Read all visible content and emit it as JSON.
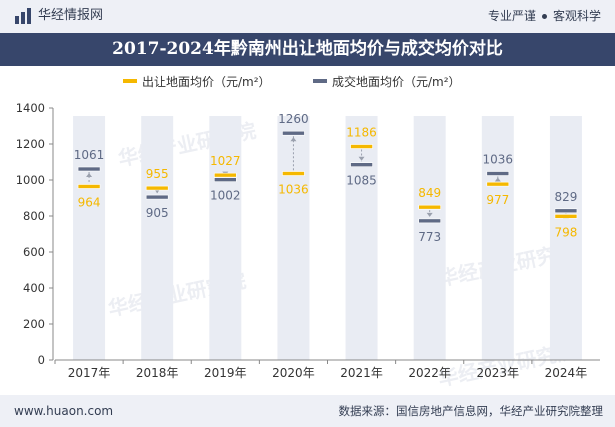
{
  "header": {
    "brand": "华经情报网",
    "slogan_left": "专业严谨",
    "slogan_right": "客观科学"
  },
  "footer": {
    "url": "www.huaon.com",
    "source": "数据来源：国信房地产信息网，华经产业研究院整理"
  },
  "watermark": "华经产业研究院",
  "colors": {
    "listing": "#f5b800",
    "deal": "#5f6a85",
    "column": "#e9ecf3",
    "title_bg": "#37466b"
  },
  "chart_data": {
    "type": "bar",
    "title": "2017-2024年黔南州出让地面均价与成交均价对比",
    "categories": [
      "2017年",
      "2018年",
      "2019年",
      "2020年",
      "2021年",
      "2022年",
      "2023年",
      "2024年"
    ],
    "series": [
      {
        "name": "出让地面均价（元/m²）",
        "values": [
          964,
          955,
          1027,
          1036,
          1186,
          849,
          977,
          798
        ]
      },
      {
        "name": "成交地面均价（元/m²）",
        "values": [
          1061,
          905,
          1002,
          1260,
          1085,
          773,
          1036,
          829
        ]
      }
    ],
    "ylim": [
      0,
      1400
    ],
    "yticks": [
      0,
      200,
      400,
      600,
      800,
      1000,
      1200,
      1400
    ],
    "legend_position": "top-right"
  }
}
